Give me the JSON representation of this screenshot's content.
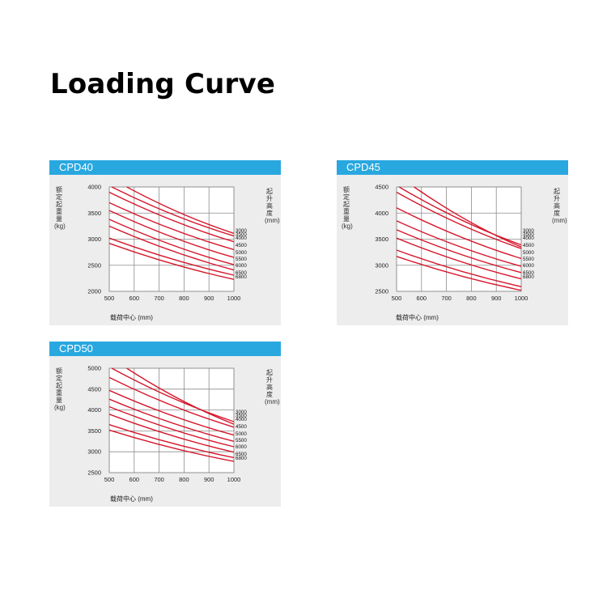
{
  "page": {
    "title": "Loading Curve"
  },
  "colors": {
    "header": "#29a8e0",
    "curve": "#d6182d",
    "grid": "#8c8c8c",
    "panel_bg": "#ededed"
  },
  "chart_data": [
    {
      "type": "line",
      "title": "CPD40",
      "xlabel": "载荷中心 (mm)",
      "ylabel": "额定起重量 (kg)",
      "right_label": "起升高度 (mm)",
      "xlim": [
        500,
        1000
      ],
      "ylim": [
        2000,
        4000
      ],
      "xticks": [
        "500",
        "600",
        "700",
        "800",
        "900",
        "1000"
      ],
      "yticks": [
        "4000",
        "3500",
        "3000",
        "2500",
        "2000"
      ],
      "series": [
        {
          "name": "3000",
          "points": [
            [
              510,
              4000
            ],
            [
              1000,
              3060
            ]
          ]
        },
        {
          "name": "3500",
          "points": [
            [
              570,
              4000
            ],
            [
              1000,
              3110
            ]
          ]
        },
        {
          "name": "4000",
          "points": [
            [
              500,
              3900
            ],
            [
              1000,
              2950
            ]
          ]
        },
        {
          "name": "4500",
          "points": [
            [
              500,
              3700
            ],
            [
              1000,
              2800
            ]
          ]
        },
        {
          "name": "5000",
          "points": [
            [
              500,
              3550
            ],
            [
              1000,
              2650
            ]
          ]
        },
        {
          "name": "5500",
          "points": [
            [
              500,
              3380
            ],
            [
              1000,
              2510
            ]
          ]
        },
        {
          "name": "6000",
          "points": [
            [
              500,
              3250
            ],
            [
              1000,
              2410
            ]
          ]
        },
        {
          "name": "6500",
          "points": [
            [
              500,
              3020
            ],
            [
              1000,
              2310
            ]
          ]
        },
        {
          "name": "6800",
          "points": [
            [
              500,
              2920
            ],
            [
              1000,
              2230
            ]
          ]
        }
      ]
    },
    {
      "type": "line",
      "title": "CPD45",
      "xlabel": "载荷中心 (mm)",
      "ylabel": "额定起重量 (kg)",
      "right_label": "起升高度 (mm)",
      "xlim": [
        500,
        1000
      ],
      "ylim": [
        2500,
        4500
      ],
      "xticks": [
        "500",
        "600",
        "700",
        "800",
        "900",
        "1000"
      ],
      "yticks": [
        "4500",
        "4000",
        "3500",
        "3000",
        "2500"
      ],
      "series": [
        {
          "name": "3000",
          "points": [
            [
              510,
              4500
            ],
            [
              1000,
              3390
            ]
          ]
        },
        {
          "name": "3500",
          "points": [
            [
              570,
              4500
            ],
            [
              1000,
              3350
            ]
          ]
        },
        {
          "name": "4000",
          "points": [
            [
              500,
              4400
            ],
            [
              1000,
              3320
            ]
          ]
        },
        {
          "name": "4500",
          "points": [
            [
              500,
              4100
            ],
            [
              1000,
              3130
            ]
          ]
        },
        {
          "name": "5000",
          "points": [
            [
              500,
              3850
            ],
            [
              1000,
              2980
            ]
          ]
        },
        {
          "name": "5500",
          "points": [
            [
              500,
              3680
            ],
            [
              1000,
              2860
            ]
          ]
        },
        {
          "name": "6000",
          "points": [
            [
              500,
              3520
            ],
            [
              1000,
              2740
            ]
          ]
        },
        {
          "name": "6500",
          "points": [
            [
              500,
              3290
            ],
            [
              1000,
              2590
            ]
          ]
        },
        {
          "name": "6800",
          "points": [
            [
              500,
              3170
            ],
            [
              1000,
              2520
            ]
          ]
        }
      ]
    },
    {
      "type": "line",
      "title": "CPD50",
      "xlabel": "载荷中心 (mm)",
      "ylabel": "额定起重量 (kg)",
      "right_label": "起升高度 (mm)",
      "xlim": [
        500,
        1000
      ],
      "ylim": [
        2500,
        5000
      ],
      "xticks": [
        "500",
        "600",
        "700",
        "800",
        "900",
        "1000"
      ],
      "yticks": [
        "5000",
        "4500",
        "4000",
        "3500",
        "3000",
        "2500"
      ],
      "series": [
        {
          "name": "3000",
          "points": [
            [
              510,
              5000
            ],
            [
              1000,
              3720
            ]
          ]
        },
        {
          "name": "3500",
          "points": [
            [
              570,
              5000
            ],
            [
              1000,
              3660
            ]
          ]
        },
        {
          "name": "4000",
          "points": [
            [
              500,
              4780
            ],
            [
              1000,
              3590
            ]
          ]
        },
        {
          "name": "4500",
          "points": [
            [
              500,
              4470
            ],
            [
              1000,
              3400
            ]
          ]
        },
        {
          "name": "5000",
          "points": [
            [
              500,
              4260
            ],
            [
              1000,
              3250
            ]
          ]
        },
        {
          "name": "5500",
          "points": [
            [
              500,
              4080
            ],
            [
              1000,
              3120
            ]
          ]
        },
        {
          "name": "6000",
          "points": [
            [
              500,
              3900
            ],
            [
              1000,
              2990
            ]
          ]
        },
        {
          "name": "6500",
          "points": [
            [
              500,
              3650
            ],
            [
              1000,
              2860
            ]
          ]
        },
        {
          "name": "6800",
          "points": [
            [
              500,
              3520
            ],
            [
              1000,
              2770
            ]
          ]
        }
      ]
    }
  ]
}
